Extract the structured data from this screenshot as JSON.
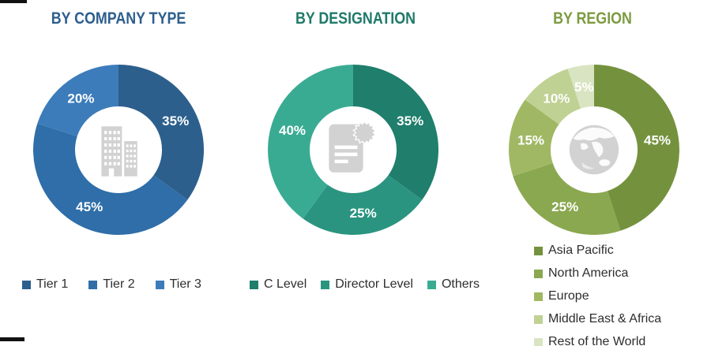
{
  "icon_color": "#d2d2d2",
  "percent_label_color": "#ffffff",
  "legend_text_color": "#2e2e2e",
  "charts": [
    {
      "title": "BY COMPANY TYPE",
      "title_color": "#2d5e8d",
      "center_icon": "building-icon",
      "legend_layout": "horizontal",
      "slices": [
        {
          "label": "Tier 1",
          "pct": "35%",
          "value": 35,
          "color": "#2d5f8d"
        },
        {
          "label": "Tier 2",
          "pct": "45%",
          "value": 45,
          "color": "#2f6ea8"
        },
        {
          "label": "Tier 3",
          "pct": "20%",
          "value": 20,
          "color": "#3c7cba"
        }
      ]
    },
    {
      "title": "BY DESIGNATION",
      "title_color": "#1f7a6a",
      "center_icon": "certificate-icon",
      "legend_layout": "horizontal",
      "slices": [
        {
          "label": "C Level",
          "pct": "35%",
          "value": 35,
          "color": "#1f7e6c"
        },
        {
          "label": "Director Level",
          "pct": "25%",
          "value": 25,
          "color": "#2a9480"
        },
        {
          "label": "Others",
          "pct": "40%",
          "value": 40,
          "color": "#3aab93"
        }
      ]
    },
    {
      "title": "BY REGION",
      "title_color": "#7d9b42",
      "center_icon": "globe-icon",
      "legend_layout": "vertical",
      "slices": [
        {
          "label": "Asia Pacific",
          "pct": "45%",
          "value": 45,
          "color": "#74923d"
        },
        {
          "label": "North America",
          "pct": "25%",
          "value": 25,
          "color": "#8aa850"
        },
        {
          "label": "Europe",
          "pct": "15%",
          "value": 15,
          "color": "#a0b864"
        },
        {
          "label": "Middle East & Africa",
          "pct": "10%",
          "value": 10,
          "color": "#c0d194"
        },
        {
          "label": "Rest of the World",
          "pct": "5%",
          "value": 5,
          "color": "#d9e4c2"
        }
      ]
    }
  ],
  "chart_data": [
    {
      "type": "pie",
      "subtype": "donut",
      "title": "BY COMPANY TYPE",
      "categories": [
        "Tier 1",
        "Tier 2",
        "Tier 3"
      ],
      "values": [
        35,
        45,
        20
      ],
      "labels": [
        "35%",
        "45%",
        "20%"
      ],
      "legend_position": "bottom",
      "start_angle_deg": 0,
      "direction": "clockwise"
    },
    {
      "type": "pie",
      "subtype": "donut",
      "title": "BY DESIGNATION",
      "categories": [
        "C Level",
        "Director Level",
        "Others"
      ],
      "values": [
        35,
        25,
        40
      ],
      "labels": [
        "35%",
        "25%",
        "40%"
      ],
      "legend_position": "bottom",
      "start_angle_deg": 0,
      "direction": "clockwise"
    },
    {
      "type": "pie",
      "subtype": "donut",
      "title": "BY REGION",
      "categories": [
        "Asia Pacific",
        "North America",
        "Europe",
        "Middle East & Africa",
        "Rest of the World"
      ],
      "values": [
        45,
        25,
        15,
        10,
        5
      ],
      "labels": [
        "45%",
        "25%",
        "15%",
        "10%",
        "5%"
      ],
      "legend_position": "bottom",
      "start_angle_deg": 0,
      "direction": "clockwise"
    }
  ]
}
